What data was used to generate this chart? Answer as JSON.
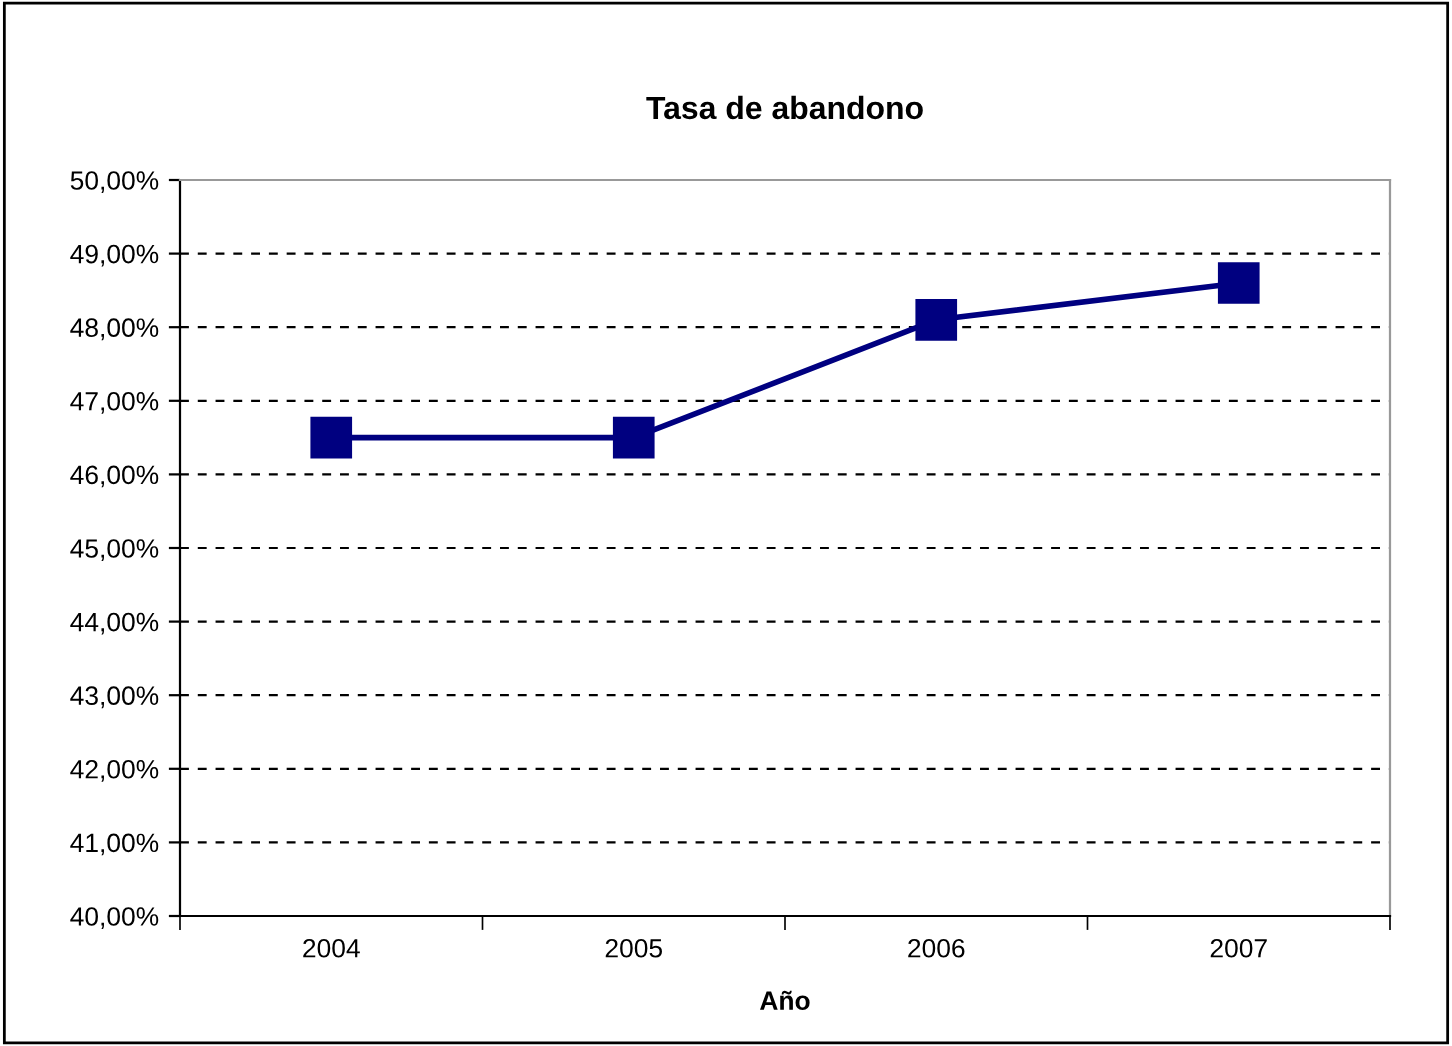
{
  "chart_data": {
    "type": "line",
    "title": "Tasa de abandono",
    "xlabel": "Año",
    "categories": [
      "2004",
      "2005",
      "2006",
      "2007"
    ],
    "series": [
      {
        "color": "#000080",
        "values": [
          46.5,
          46.5,
          48.1,
          48.6
        ]
      }
    ],
    "ylim": [
      40,
      50
    ],
    "yticks": [
      {
        "value": 40,
        "label": "40,00%"
      },
      {
        "value": 41,
        "label": "41,00%"
      },
      {
        "value": 42,
        "label": "42,00%"
      },
      {
        "value": 43,
        "label": "43,00%"
      },
      {
        "value": 44,
        "label": "44,00%"
      },
      {
        "value": 45,
        "label": "45,00%"
      },
      {
        "value": 46,
        "label": "46,00%"
      },
      {
        "value": 47,
        "label": "47,00%"
      },
      {
        "value": 48,
        "label": "48,00%"
      },
      {
        "value": 49,
        "label": "49,00%"
      },
      {
        "value": 50,
        "label": "50,00%"
      }
    ],
    "grid": "y",
    "marker": "square",
    "line_style": "solid"
  }
}
